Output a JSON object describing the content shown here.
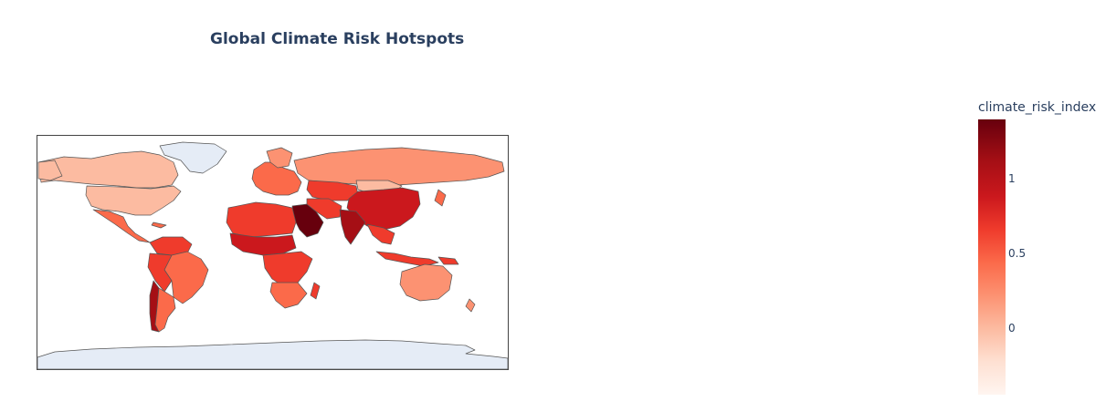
{
  "map": {
    "title": "Global Climate Risk Hotspots",
    "colorbar_title": "climate_risk_index",
    "colorbar_ticks": [
      "1",
      "0.5",
      "0"
    ],
    "colorscale": [
      "#fff5f0",
      "#fee0d2",
      "#fcbba1",
      "#fc9272",
      "#fb6a4a",
      "#ef3b2c",
      "#cb181d",
      "#a50f15",
      "#67000d"
    ],
    "colors": {
      "ocean": "#ffffff",
      "no_data_land": "#e5ecf6",
      "border": "#444444",
      "title": "#2a3f5f"
    }
  }
}
